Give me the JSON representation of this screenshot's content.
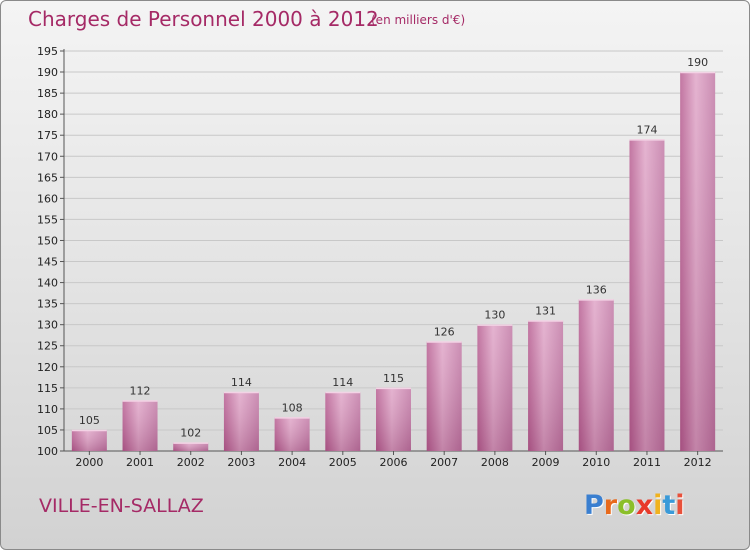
{
  "header": {
    "title": "Charges de Personnel 2000 à 2012",
    "subtitle": "(en milliers d'€)"
  },
  "footer": {
    "town": "VILLE-EN-SALLAZ",
    "logo_letters": [
      {
        "ch": "P",
        "color": "#3a7fd0"
      },
      {
        "ch": "r",
        "color": "#e86a1c"
      },
      {
        "ch": "o",
        "color": "#8bbf2a"
      },
      {
        "ch": "x",
        "color": "#e83a2a"
      },
      {
        "ch": "i",
        "color": "#f0b21e"
      },
      {
        "ch": "t",
        "color": "#3a9ad8"
      },
      {
        "ch": "i",
        "color": "#e8503a"
      }
    ]
  },
  "chart_data": {
    "type": "bar",
    "categories": [
      "2000",
      "2001",
      "2002",
      "2003",
      "2004",
      "2005",
      "2006",
      "2007",
      "2008",
      "2009",
      "2010",
      "2011",
      "2012"
    ],
    "values": [
      105,
      112,
      102,
      114,
      108,
      114,
      115,
      126,
      130,
      131,
      136,
      174,
      190
    ],
    "ylim": [
      100,
      195
    ],
    "yticks": [
      100,
      105,
      110,
      115,
      120,
      125,
      130,
      135,
      140,
      145,
      150,
      155,
      160,
      165,
      170,
      175,
      180,
      185,
      190,
      195
    ],
    "grid": true,
    "bar_color": "#c87aa8"
  }
}
